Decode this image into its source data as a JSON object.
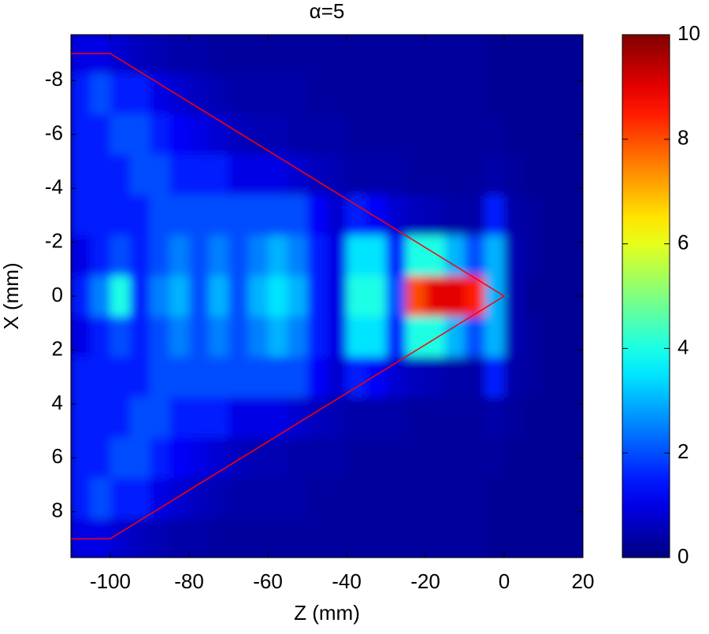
{
  "chart_data": {
    "type": "heatmap",
    "title": "α=5",
    "xlabel": "Z (mm)",
    "ylabel": "X (mm)",
    "x": [
      -107.5,
      -102.5,
      -97.5,
      -92.5,
      -87.5,
      -82.5,
      -77.5,
      -72.5,
      -67.5,
      -62.5,
      -57.5,
      -52.5,
      -47.5,
      -42.5,
      -37.5,
      -32.5,
      -27.5,
      -22.5,
      -17.5,
      -12.5,
      -7.5,
      -2.5,
      2.5,
      7.5,
      12.5,
      17.5
    ],
    "y": [
      -9,
      -7.5,
      -6,
      -4.5,
      -3,
      -1.5,
      0,
      1.5,
      3,
      4.5,
      6,
      7.5,
      9
    ],
    "z": [
      [
        1,
        1,
        0.8,
        0.6,
        0.5,
        0.4,
        0.4,
        0.3,
        0.3,
        0.3,
        0.3,
        0.3,
        0.3,
        0.3,
        0.3,
        0.3,
        0.3,
        0.3,
        0.3,
        0.3,
        0.3,
        0.2,
        0.2,
        0.2,
        0.2,
        0.2
      ],
      [
        1.5,
        2,
        1.5,
        1.5,
        1,
        0.8,
        0.6,
        0.5,
        0.4,
        0.4,
        0.4,
        0.4,
        0.3,
        0.3,
        0.3,
        0.3,
        0.3,
        0.3,
        0.3,
        0.3,
        0.3,
        0.2,
        0.2,
        0.2,
        0.2,
        0.2
      ],
      [
        1.5,
        1.5,
        2,
        2,
        1.5,
        1.2,
        1,
        0.8,
        0.6,
        0.5,
        0.5,
        0.4,
        0.4,
        0.4,
        0.3,
        0.3,
        0.3,
        0.3,
        0.3,
        0.3,
        0.3,
        0.3,
        0.2,
        0.2,
        0.2,
        0.2
      ],
      [
        1.5,
        1.5,
        1.5,
        2,
        2,
        1.5,
        1.5,
        1.5,
        1,
        1,
        1,
        0.8,
        0.6,
        0.5,
        0.4,
        0.4,
        0.4,
        0.3,
        0.3,
        0.3,
        0.3,
        0.4,
        0.3,
        0.2,
        0.2,
        0.2
      ],
      [
        1.5,
        1.5,
        1.5,
        1.5,
        2,
        2,
        2,
        2,
        2,
        2,
        2,
        2,
        1.2,
        0.8,
        1.5,
        1.2,
        0.8,
        0.6,
        0.5,
        0.4,
        0.4,
        1.5,
        0.4,
        0.3,
        0.2,
        0.2
      ],
      [
        1,
        1.5,
        2,
        1.5,
        2,
        2.5,
        2,
        2.5,
        2,
        2.5,
        3,
        2.5,
        1.5,
        1,
        3.5,
        3.5,
        1.5,
        4,
        4,
        3,
        2,
        3,
        0.5,
        0.3,
        0.2,
        0.2
      ],
      [
        1.5,
        2.5,
        4,
        1.5,
        2.5,
        3,
        2,
        3,
        2,
        3,
        3.5,
        3,
        1.5,
        1,
        4,
        4,
        2,
        8,
        9,
        9,
        8.5,
        3,
        0.5,
        0.2,
        0.2,
        0.2
      ],
      [
        1,
        1.5,
        2,
        1.5,
        2,
        2.5,
        2,
        2.5,
        2,
        2.5,
        3,
        2.5,
        1.5,
        1,
        3.5,
        3.5,
        1.5,
        4,
        4,
        3,
        2,
        3,
        0.5,
        0.3,
        0.2,
        0.2
      ],
      [
        1.5,
        1.5,
        1.5,
        1.5,
        2,
        2,
        2,
        2,
        2,
        2,
        2,
        2,
        1.2,
        0.8,
        1.5,
        1.2,
        0.8,
        0.6,
        0.5,
        0.4,
        0.4,
        1.5,
        0.4,
        0.3,
        0.2,
        0.2
      ],
      [
        1.5,
        1.5,
        1.5,
        2,
        2,
        1.5,
        1.5,
        1.5,
        1,
        1,
        1,
        0.8,
        0.6,
        0.5,
        0.4,
        0.4,
        0.4,
        0.3,
        0.3,
        0.3,
        0.3,
        0.4,
        0.3,
        0.2,
        0.2,
        0.2
      ],
      [
        1.5,
        1.5,
        2,
        2,
        1.5,
        1.2,
        1,
        0.8,
        0.6,
        0.5,
        0.5,
        0.4,
        0.4,
        0.4,
        0.3,
        0.3,
        0.3,
        0.3,
        0.3,
        0.3,
        0.3,
        0.3,
        0.2,
        0.2,
        0.2,
        0.2
      ],
      [
        1.5,
        2,
        1.5,
        1.5,
        1,
        0.8,
        0.6,
        0.5,
        0.4,
        0.4,
        0.4,
        0.4,
        0.3,
        0.3,
        0.3,
        0.3,
        0.3,
        0.3,
        0.3,
        0.3,
        0.3,
        0.2,
        0.2,
        0.2,
        0.2,
        0.2
      ],
      [
        1,
        1,
        0.8,
        0.6,
        0.5,
        0.4,
        0.4,
        0.3,
        0.3,
        0.3,
        0.3,
        0.3,
        0.3,
        0.3,
        0.3,
        0.3,
        0.3,
        0.3,
        0.3,
        0.3,
        0.3,
        0.2,
        0.2,
        0.2,
        0.2,
        0.2
      ]
    ],
    "xlim": [
      -110,
      20
    ],
    "xticks": [
      -100,
      -80,
      -60,
      -40,
      -20,
      0,
      20
    ],
    "ylim": [
      -9.7,
      9.7
    ],
    "y_reversed": true,
    "yticks": [
      -8,
      -6,
      -4,
      -2,
      0,
      2,
      4,
      6,
      8
    ],
    "zlim": [
      0,
      10
    ],
    "zticks": [
      0,
      2,
      4,
      6,
      8,
      10
    ],
    "colormap": "jet",
    "overlay": {
      "color": "#ff0000",
      "x": [
        -110,
        -100,
        0,
        -100,
        -110
      ],
      "y": [
        -9,
        -9,
        0,
        9,
        9
      ]
    }
  }
}
